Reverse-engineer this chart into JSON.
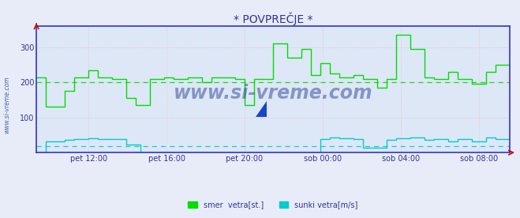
{
  "title": "* POVPREČJE *",
  "bg_color": "#e8ecf8",
  "plot_bg_color": "#dce8f8",
  "grid_color_major": "#ffaaaa",
  "grid_color_minor": "#ffdddd",
  "axis_color": "#3333cc",
  "title_color": "#333399",
  "tick_label_color": "#333399",
  "watermark": "www.si-vreme.com",
  "watermark_color": "#1a3088",
  "ylabel_text": "www.si-vreme.com",
  "ylabel_color": "#4466aa",
  "xlim_start": 0,
  "xlim_end": 100,
  "ylim": [
    0,
    360
  ],
  "yticks": [
    0,
    100,
    200,
    300
  ],
  "dashed_line_green_y": 200,
  "dashed_line_cyan_y": 18,
  "xtick_labels": [
    "pet 12:00",
    "pet 16:00",
    "pet 20:00",
    "sob 00:00",
    "sob 04:00",
    "sob 08:00"
  ],
  "xtick_positions": [
    11.0,
    27.5,
    44.0,
    60.5,
    77.0,
    93.5
  ],
  "legend": [
    {
      "label": "smer  vetra[st.]",
      "color": "#00dd00"
    },
    {
      "label": "sunki vetra[m/s]",
      "color": "#00cccc"
    }
  ],
  "green_x": [
    0,
    2,
    2,
    6,
    6,
    8,
    8,
    11,
    11,
    13,
    13,
    16,
    16,
    19,
    19,
    21,
    21,
    24,
    24,
    27,
    27,
    29,
    29,
    32,
    32,
    35,
    35,
    37,
    37,
    40,
    40,
    42,
    42,
    44,
    44,
    46,
    46,
    50,
    50,
    53,
    53,
    56,
    56,
    58,
    58,
    60,
    60,
    62,
    62,
    64,
    64,
    67,
    67,
    69,
    69,
    72,
    72,
    74,
    74,
    76,
    76,
    79,
    79,
    82,
    82,
    84,
    84,
    87,
    87,
    89,
    89,
    92,
    92,
    95,
    95,
    97,
    97,
    100
  ],
  "green_y": [
    215,
    215,
    130,
    130,
    175,
    175,
    215,
    215,
    235,
    235,
    215,
    215,
    210,
    210,
    155,
    155,
    135,
    135,
    210,
    210,
    215,
    215,
    210,
    210,
    215,
    215,
    200,
    200,
    215,
    215,
    215,
    215,
    210,
    210,
    135,
    135,
    210,
    210,
    310,
    310,
    270,
    270,
    295,
    295,
    220,
    220,
    255,
    255,
    225,
    225,
    215,
    215,
    220,
    220,
    210,
    210,
    185,
    185,
    210,
    210,
    335,
    335,
    295,
    295,
    215,
    215,
    210,
    210,
    230,
    230,
    210,
    210,
    195,
    195,
    230,
    230,
    250,
    250
  ],
  "cyan_x": [
    0,
    2,
    2,
    6,
    6,
    8,
    8,
    11,
    11,
    13,
    13,
    16,
    16,
    19,
    19,
    22,
    22,
    32,
    32,
    60,
    60,
    62,
    62,
    64,
    64,
    67,
    67,
    69,
    69,
    74,
    74,
    76,
    76,
    79,
    79,
    82,
    82,
    84,
    84,
    87,
    87,
    89,
    89,
    92,
    92,
    95,
    95,
    97,
    97,
    100
  ],
  "cyan_y": [
    0,
    0,
    33,
    33,
    36,
    36,
    38,
    38,
    40,
    40,
    38,
    38,
    38,
    38,
    24,
    24,
    0,
    0,
    0,
    0,
    38,
    38,
    43,
    43,
    40,
    40,
    38,
    38,
    15,
    15,
    36,
    36,
    40,
    40,
    43,
    43,
    36,
    36,
    38,
    38,
    33,
    33,
    38,
    38,
    33,
    33,
    43,
    43,
    38,
    38
  ]
}
